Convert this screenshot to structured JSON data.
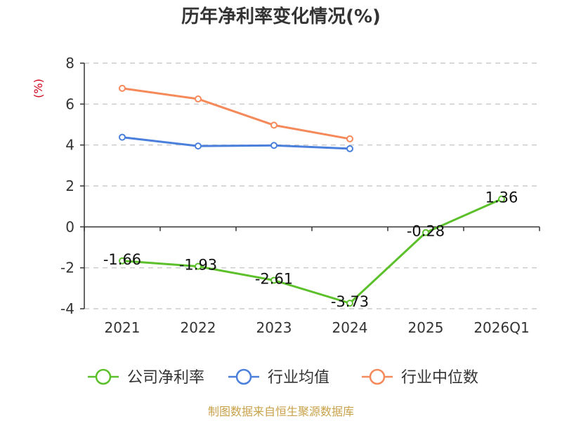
{
  "chart_data": {
    "type": "line",
    "title": "历年净利率变化情况(%)",
    "unit": "(%)",
    "categories": [
      "2021",
      "2022",
      "2023",
      "2024",
      "2025",
      "2026Q1"
    ],
    "ylim": [
      -4,
      8
    ],
    "yticks": [
      "8",
      "6",
      "4",
      "2",
      "0",
      "-2",
      "-4"
    ],
    "grid": true,
    "legend_position": "bottom",
    "series": [
      {
        "name": "公司净利率",
        "color": "#5cc02b",
        "values": [
          -1.66,
          -1.93,
          -2.61,
          -3.73,
          -0.28,
          1.36
        ],
        "labels": [
          "-1.66",
          "-1.93",
          "-2.61",
          "-3.73",
          "-0.28",
          "1.36"
        ]
      },
      {
        "name": "行业均值",
        "color": "#4a7fdc",
        "values": [
          4.38,
          3.95,
          3.98,
          3.82,
          null,
          null
        ]
      },
      {
        "name": "行业中位数",
        "color": "#f5895a",
        "values": [
          6.77,
          6.25,
          4.97,
          4.3,
          null,
          null
        ]
      }
    ]
  },
  "footer": {
    "source": "制图数据来自恒生聚源数据库"
  }
}
